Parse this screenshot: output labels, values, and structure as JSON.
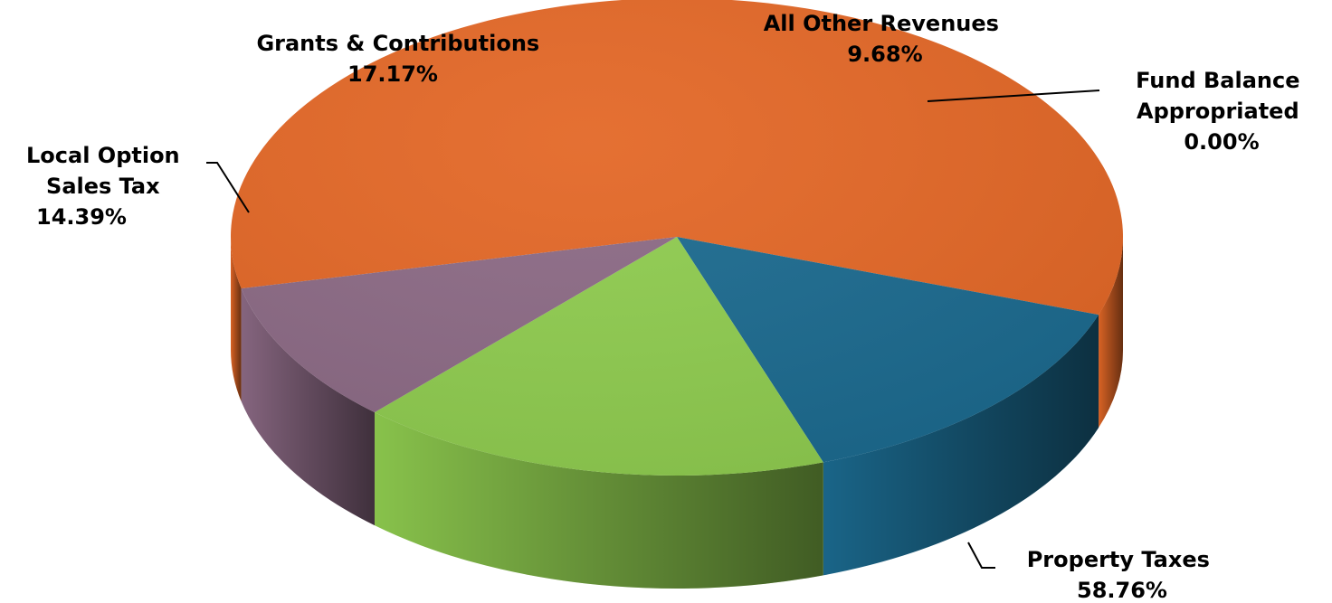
{
  "chart_data": {
    "type": "pie",
    "style": "3d",
    "slices": [
      {
        "label": "Property Taxes",
        "value": 58.76,
        "value_text": "58.76%",
        "color": "#E36726"
      },
      {
        "label": "Local Option\nSales Tax",
        "value": 14.39,
        "value_text": "14.39%",
        "color": "#1B6A8F"
      },
      {
        "label": "Grants & Contributions",
        "value": 17.17,
        "value_text": "17.17%",
        "color": "#8FCC4F"
      },
      {
        "label": "All Other Revenues",
        "value": 9.68,
        "value_text": "9.68%",
        "color": "#8C6A85"
      },
      {
        "label": "Fund Balance\nAppropriated",
        "value": 0.0,
        "value_text": "0.00%",
        "color": "#E36726"
      }
    ],
    "legend": "none",
    "data_labels": "outside with leader lines"
  }
}
